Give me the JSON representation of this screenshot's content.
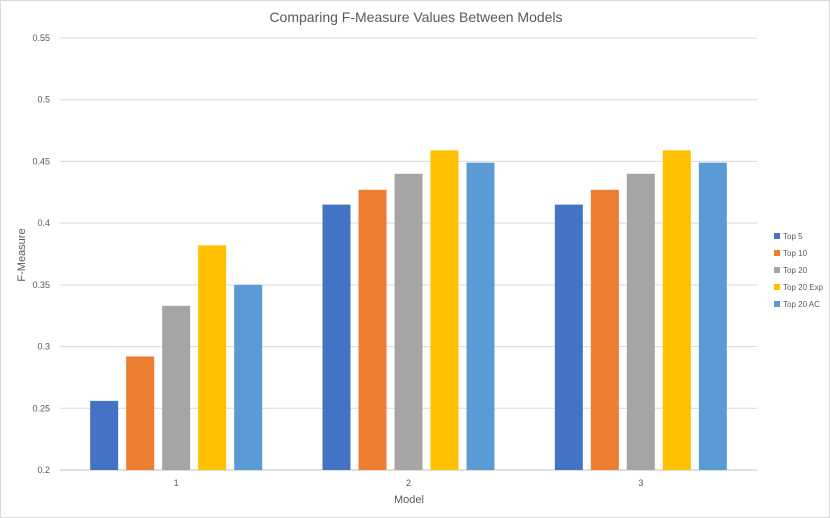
{
  "chart_data": {
    "type": "bar",
    "title": "Comparing F-Measure Values Between Models",
    "xlabel": "Model",
    "ylabel": "F-Measure",
    "categories": [
      "1",
      "2",
      "3"
    ],
    "ylim": [
      0.2,
      0.55
    ],
    "yticks": [
      "0.2",
      "0.25",
      "0.3",
      "0.35",
      "0.4",
      "0.45",
      "0.5",
      "0.55"
    ],
    "grid": true,
    "legend_position": "right",
    "series": [
      {
        "name": "Top 5",
        "color": "#4472c4",
        "values": [
          0.256,
          0.415,
          0.415
        ]
      },
      {
        "name": "Top 10",
        "color": "#ed7d31",
        "values": [
          0.292,
          0.427,
          0.427
        ]
      },
      {
        "name": "Top 20",
        "color": "#a5a5a5",
        "values": [
          0.333,
          0.44,
          0.44
        ]
      },
      {
        "name": "Top 20 Exp",
        "color": "#ffc000",
        "values": [
          0.382,
          0.459,
          0.459
        ]
      },
      {
        "name": "Top 20 AC",
        "color": "#5b9bd5",
        "values": [
          0.35,
          0.449,
          0.449
        ]
      }
    ]
  }
}
